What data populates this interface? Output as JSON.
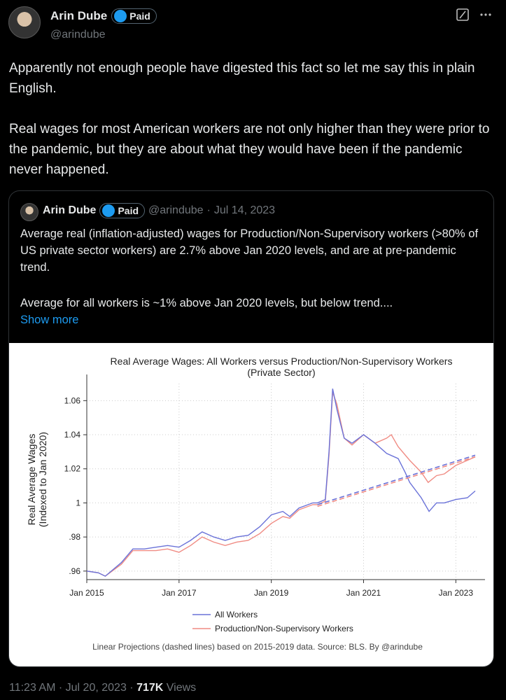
{
  "tweet": {
    "author": {
      "name": "Arin Dube",
      "badge": "Paid",
      "handle": "@arindube"
    },
    "text": [
      "Apparently not enough people have digested this fact so let me say this in plain English.",
      "Real wages for most American workers are not only higher than they were prior to the pandemic, but they are about what they would have been if the pandemic never happened."
    ],
    "quote": {
      "author": {
        "name": "Arin Dube",
        "badge": "Paid",
        "handle": "@arindube"
      },
      "separator": "·",
      "date": "Jul 14, 2023",
      "text": [
        "Average real (inflation-adjusted) wages for Production/Non-Supervisory workers (>80% of US private sector workers) are 2.7% above Jan 2020 levels, and are at pre-pandemic trend.",
        "Average for all workers is ~1% above Jan 2020 levels, but below trend...."
      ],
      "show_more": "Show more"
    },
    "footer": {
      "time": "11:23 AM",
      "separator": "·",
      "date": "Jul 20, 2023",
      "views": "717K",
      "views_label": "Views"
    }
  },
  "chart_data": {
    "type": "line",
    "title": "Real Average Wages: All Workers versus Production/Non-Supervisory Workers",
    "subtitle": "(Private Sector)",
    "y_label": [
      "Real Average Wages",
      "(Indexed to Jan 2020)"
    ],
    "footnote": "Linear Projections (dashed lines) based on 2015-2019 data. Source: BLS. By @arindube",
    "xlim": [
      2015,
      2023.45
    ],
    "ylim": [
      0.955,
      1.07
    ],
    "xticks": [
      {
        "value": 2015,
        "label": "Jan 2015"
      },
      {
        "value": 2017,
        "label": "Jan 2017"
      },
      {
        "value": 2019,
        "label": "Jan 2019"
      },
      {
        "value": 2021,
        "label": "Jan 2021"
      },
      {
        "value": 2023,
        "label": "Jan 2023"
      }
    ],
    "yticks": [
      {
        "value": 0.96,
        "label": ".96"
      },
      {
        "value": 0.98,
        "label": ".98"
      },
      1,
      1.02,
      1.04,
      1.06
    ],
    "grid": true,
    "series": [
      {
        "name": "All Workers",
        "color": "#6a72d8",
        "x": [
          2015.0,
          2015.25,
          2015.4,
          2015.75,
          2016.0,
          2016.25,
          2016.5,
          2016.75,
          2017.0,
          2017.25,
          2017.5,
          2017.75,
          2018.0,
          2018.25,
          2018.5,
          2018.75,
          2019.0,
          2019.25,
          2019.4,
          2019.6,
          2019.9,
          2020.0,
          2020.17,
          2020.25,
          2020.33,
          2020.42,
          2020.58,
          2020.75,
          2021.0,
          2021.25,
          2021.5,
          2021.75,
          2021.9,
          2022.0,
          2022.25,
          2022.42,
          2022.58,
          2022.75,
          2023.0,
          2023.25,
          2023.42
        ],
        "values": [
          0.96,
          0.959,
          0.957,
          0.965,
          0.973,
          0.973,
          0.974,
          0.975,
          0.974,
          0.978,
          0.983,
          0.98,
          0.978,
          0.98,
          0.981,
          0.986,
          0.993,
          0.995,
          0.992,
          0.997,
          1.0,
          1.0,
          1.002,
          1.03,
          1.067,
          1.055,
          1.038,
          1.035,
          1.04,
          1.035,
          1.029,
          1.026,
          1.018,
          1.012,
          1.003,
          0.995,
          1.0,
          1.0,
          1.002,
          1.003,
          1.007
        ]
      },
      {
        "name": "Production/Non-Supervisory Workers",
        "color": "#f08c84",
        "x": [
          2015.0,
          2015.25,
          2015.4,
          2015.75,
          2016.0,
          2016.25,
          2016.5,
          2016.75,
          2017.0,
          2017.25,
          2017.5,
          2017.75,
          2018.0,
          2018.25,
          2018.5,
          2018.75,
          2019.0,
          2019.25,
          2019.4,
          2019.6,
          2019.9,
          2020.0,
          2020.17,
          2020.25,
          2020.33,
          2020.42,
          2020.58,
          2020.75,
          2021.0,
          2021.25,
          2021.5,
          2021.6,
          2021.75,
          2022.0,
          2022.25,
          2022.4,
          2022.58,
          2022.75,
          2023.0,
          2023.25,
          2023.42
        ],
        "values": [
          0.96,
          0.959,
          0.957,
          0.964,
          0.972,
          0.972,
          0.972,
          0.973,
          0.971,
          0.975,
          0.98,
          0.977,
          0.975,
          0.977,
          0.978,
          0.982,
          0.988,
          0.992,
          0.991,
          0.996,
          0.999,
          0.999,
          1.001,
          1.028,
          1.065,
          1.058,
          1.038,
          1.034,
          1.04,
          1.035,
          1.038,
          1.04,
          1.033,
          1.025,
          1.018,
          1.012,
          1.016,
          1.017,
          1.022,
          1.025,
          1.027
        ]
      }
    ],
    "projections": [
      {
        "color": "#6a72d8",
        "x": [
          2020.0,
          2023.42
        ],
        "values": [
          0.999,
          1.028
        ]
      },
      {
        "color": "#f08c84",
        "x": [
          2020.0,
          2023.42
        ],
        "values": [
          0.998,
          1.027
        ]
      }
    ]
  }
}
